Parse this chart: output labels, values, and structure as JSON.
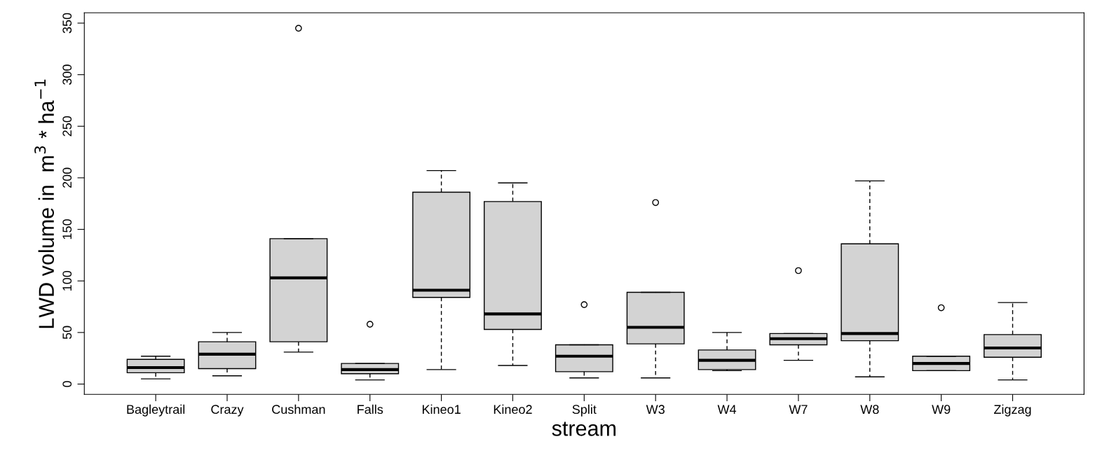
{
  "chart_data": {
    "type": "box",
    "xlabel": "stream",
    "ylabel": "LWD volume in  m$^{3}$ * ha$^{−1}$",
    "categories": [
      "Bagleytrail",
      "Crazy",
      "Cushman",
      "Falls",
      "Kineo1",
      "Kineo2",
      "Split",
      "W3",
      "W4",
      "W7",
      "W8",
      "W9",
      "Zigzag"
    ],
    "color": "#d3d3d3",
    "boxes": [
      {
        "low": 5,
        "q1": 11,
        "median": 16,
        "q3": 24,
        "high": 27
      },
      {
        "low": 8,
        "q1": 15,
        "median": 29,
        "q3": 41,
        "high": 50
      },
      {
        "low": 31,
        "q1": 41,
        "median": 103,
        "q3": 141,
        "high": 141,
        "outliers": [
          345
        ]
      },
      {
        "low": 4,
        "q1": 10,
        "median": 14,
        "q3": 20,
        "high": 20,
        "outliers": [
          58
        ]
      },
      {
        "low": 14,
        "q1": 84,
        "median": 91,
        "q3": 186,
        "high": 207
      },
      {
        "low": 18,
        "q1": 53,
        "median": 68,
        "q3": 177,
        "high": 195
      },
      {
        "low": 6,
        "q1": 12,
        "median": 27,
        "q3": 38,
        "high": 38,
        "outliers": [
          77
        ]
      },
      {
        "low": 6,
        "q1": 39,
        "median": 55,
        "q3": 89,
        "high": 89,
        "outliers": [
          176
        ]
      },
      {
        "low": 13,
        "q1": 14,
        "median": 23,
        "q3": 33,
        "high": 50
      },
      {
        "low": 23,
        "q1": 38,
        "median": 44,
        "q3": 49,
        "high": 49,
        "outliers": [
          110
        ]
      },
      {
        "low": 7,
        "q1": 42,
        "median": 49,
        "q3": 136,
        "high": 197
      },
      {
        "low": 13,
        "q1": 13,
        "median": 20,
        "q3": 27,
        "high": 27,
        "outliers": [
          74
        ]
      },
      {
        "low": 4,
        "q1": 26,
        "median": 35,
        "q3": 48,
        "high": 79
      }
    ],
    "ylim": [
      -10,
      360
    ],
    "yticks": [
      0,
      50,
      100,
      150,
      200,
      250,
      300,
      350
    ],
    "grid": false,
    "legend": false
  }
}
